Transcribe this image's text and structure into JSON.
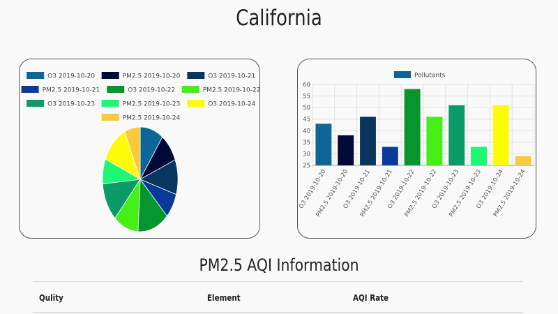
{
  "page": {
    "title": "California"
  },
  "pie_chart": {
    "legend": [
      {
        "label": "O3 2019-10-20",
        "color": "#0e6697"
      },
      {
        "label": "PM2.5 2019-10-20",
        "color": "#020838"
      },
      {
        "label": "O3 2019-10-21",
        "color": "#08365e"
      },
      {
        "label": "PM2.5 2019-10-21",
        "color": "#073a9b"
      },
      {
        "label": "O3 2019-10-22",
        "color": "#07952e"
      },
      {
        "label": "PM2.5 2019-10-22",
        "color": "#44f018"
      },
      {
        "label": "O3 2019-10-23",
        "color": "#0c9b66"
      },
      {
        "label": "PM2.5 2019-10-23",
        "color": "#1cf874"
      },
      {
        "label": "O3 2019-10-24",
        "color": "#fdfb0a"
      },
      {
        "label": "PM2.5 2019-10-24",
        "color": "#fcc93c"
      }
    ]
  },
  "bar_chart": {
    "legend_label": "Pollutants",
    "legend_color": "#0e6697"
  },
  "chart_data": [
    {
      "type": "pie",
      "categories": [
        "O3 2019-10-20",
        "PM2.5 2019-10-20",
        "O3 2019-10-21",
        "PM2.5 2019-10-21",
        "O3 2019-10-22",
        "PM2.5 2019-10-22",
        "O3 2019-10-23",
        "PM2.5 2019-10-23",
        "O3 2019-10-24",
        "PM2.5 2019-10-24"
      ],
      "values": [
        43,
        38,
        46,
        33,
        58,
        46,
        51,
        33,
        51,
        29
      ],
      "colors": [
        "#0e6697",
        "#020838",
        "#08365e",
        "#073a9b",
        "#07952e",
        "#44f018",
        "#0c9b66",
        "#1cf874",
        "#fdfb0a",
        "#fcc93c"
      ],
      "legend_position": "top"
    },
    {
      "type": "bar",
      "categories": [
        "O3 2019-10-20",
        "PM2.5 2019-10-20",
        "O3 2019-10-21",
        "PM2.5 2019-10-21",
        "O3 2019-10-22",
        "PM2.5 2019-10-22",
        "O3 2019-10-23",
        "PM2.5 2019-10-23",
        "O3 2019-10-24",
        "PM2.5 2019-10-24"
      ],
      "series": [
        {
          "name": "Pollutants",
          "values": [
            43,
            38,
            46,
            33,
            58,
            46,
            51,
            33,
            51,
            29
          ]
        }
      ],
      "colors": [
        "#0e6697",
        "#020838",
        "#08365e",
        "#073a9b",
        "#07952e",
        "#44f018",
        "#0c9b66",
        "#1cf874",
        "#fdfb0a",
        "#fcc93c"
      ],
      "ylim": [
        25,
        60
      ],
      "yticks": [
        25,
        30,
        35,
        40,
        45,
        50,
        55,
        60
      ],
      "grid": true,
      "legend_position": "top"
    }
  ],
  "aqi_section": {
    "title": "PM2.5 AQI Information",
    "columns": [
      "Qulity",
      "Element",
      "AQI Rate"
    ]
  }
}
